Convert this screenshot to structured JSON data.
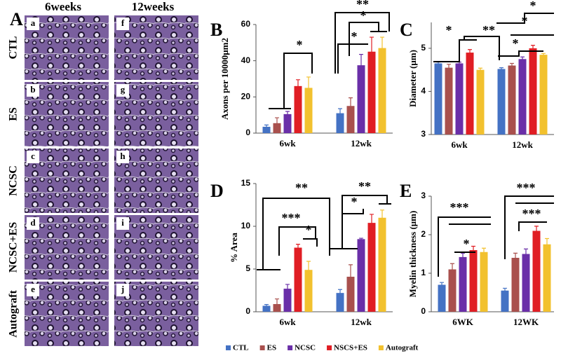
{
  "panel_a": {
    "label": "A",
    "columns": [
      "6weeks",
      "12weeks"
    ],
    "rows": [
      "CTL",
      "ES",
      "NCSC",
      "NCSC+ES",
      "Autograft"
    ],
    "sublabels": [
      [
        "a",
        "f"
      ],
      [
        "b",
        "g"
      ],
      [
        "c",
        "h"
      ],
      [
        "d",
        "i"
      ],
      [
        "e",
        "j"
      ]
    ]
  },
  "legend": [
    {
      "name": "CTL",
      "color": "#4472c4"
    },
    {
      "name": "ES",
      "color": "#a9504d"
    },
    {
      "name": "NCSC",
      "color": "#6a2fa8"
    },
    {
      "name": "NSCS+ES",
      "color": "#e01e24"
    },
    {
      "name": "Autograft",
      "color": "#f2c12e"
    }
  ],
  "chart_data": [
    {
      "type": "bar",
      "panel": "B",
      "ylabel": "Axons per 10000μm2",
      "categories": [
        "6wk",
        "12wk"
      ],
      "ylim": [
        0,
        60
      ],
      "yticks": [
        0,
        20,
        40,
        60
      ],
      "series": [
        {
          "values": [
            3.5,
            11
          ],
          "errors": [
            1,
            2.5
          ]
        },
        {
          "values": [
            5.5,
            15
          ],
          "errors": [
            3,
            4.5
          ]
        },
        {
          "values": [
            10.5,
            37.5
          ],
          "errors": [
            1.5,
            6
          ]
        },
        {
          "values": [
            26,
            45
          ],
          "errors": [
            3.5,
            8
          ]
        },
        {
          "values": [
            25,
            47
          ],
          "errors": [
            6,
            6
          ]
        }
      ],
      "annotations": [
        "*",
        "**",
        "*",
        "*"
      ]
    },
    {
      "type": "bar",
      "panel": "C",
      "ylabel": "Diameter (μm)",
      "categories": [
        "6wk",
        "12wk"
      ],
      "ylim": [
        3,
        5.6
      ],
      "yticks": [
        3,
        4,
        5
      ],
      "series": [
        {
          "values": [
            4.65,
            4.52
          ],
          "errors": [
            0.03,
            0.03
          ]
        },
        {
          "values": [
            4.55,
            4.6
          ],
          "errors": [
            0.08,
            0.05
          ]
        },
        {
          "values": [
            4.65,
            4.75
          ],
          "errors": [
            0.03,
            0.05
          ]
        },
        {
          "values": [
            4.9,
            5.0
          ],
          "errors": [
            0.07,
            0.07
          ]
        },
        {
          "values": [
            4.5,
            4.85
          ],
          "errors": [
            0.04,
            0.03
          ]
        }
      ],
      "annotations": [
        "*",
        "**",
        "*",
        "*",
        "*"
      ]
    },
    {
      "type": "bar",
      "panel": "D",
      "ylabel": "% Area",
      "categories": [
        "6wk",
        "12wk"
      ],
      "ylim": [
        0,
        15
      ],
      "yticks": [
        0,
        5,
        10,
        15
      ],
      "series": [
        {
          "values": [
            0.7,
            2.2
          ],
          "errors": [
            0.15,
            0.4
          ]
        },
        {
          "values": [
            0.9,
            4.1
          ],
          "errors": [
            0.6,
            1.4
          ]
        },
        {
          "values": [
            2.7,
            8.5
          ],
          "errors": [
            0.5,
            0.1
          ]
        },
        {
          "values": [
            7.5,
            10.4
          ],
          "errors": [
            0.4,
            1.0
          ]
        },
        {
          "values": [
            4.9,
            11
          ],
          "errors": [
            1.0,
            0.9
          ]
        }
      ],
      "annotations": [
        "**",
        "***",
        "*",
        "**",
        "*"
      ]
    },
    {
      "type": "bar",
      "panel": "E",
      "ylabel": "Myelin thickness (μm)",
      "categories": [
        "6WK",
        "12WK"
      ],
      "ylim": [
        0,
        3
      ],
      "yticks": [
        0,
        1,
        2,
        3
      ],
      "series": [
        {
          "values": [
            0.7,
            0.55
          ],
          "errors": [
            0.06,
            0.06
          ]
        },
        {
          "values": [
            1.1,
            1.4
          ],
          "errors": [
            0.15,
            0.12
          ]
        },
        {
          "values": [
            1.42,
            1.5
          ],
          "errors": [
            0.1,
            0.13
          ]
        },
        {
          "values": [
            1.6,
            2.1
          ],
          "errors": [
            0.1,
            0.12
          ]
        },
        {
          "values": [
            1.55,
            1.75
          ],
          "errors": [
            0.1,
            0.15
          ]
        }
      ],
      "annotations": [
        "***",
        "*",
        "***",
        "***"
      ]
    }
  ]
}
